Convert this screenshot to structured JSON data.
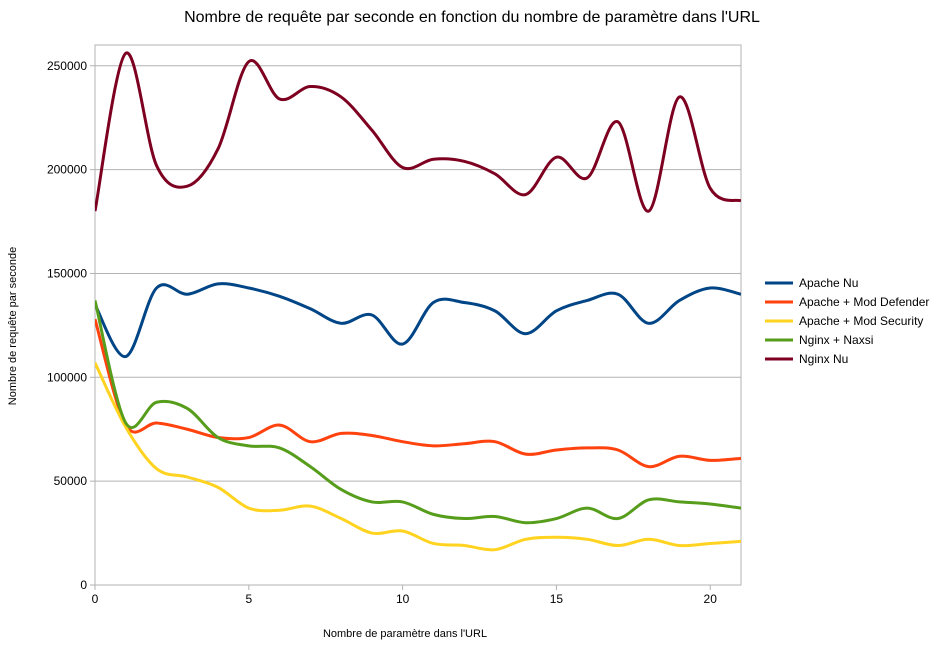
{
  "chart_data": {
    "type": "line",
    "title": "Nombre de requête par seconde en fonction du nombre de paramètre dans l'URL",
    "xlabel": "Nombre de paramètre dans l'URL",
    "ylabel": "Nombre de requête par seconde",
    "xlim": [
      0,
      21
    ],
    "ylim": [
      0,
      260000
    ],
    "xticks": [
      0,
      5,
      10,
      15,
      20
    ],
    "yticks": [
      0,
      50000,
      100000,
      150000,
      200000,
      250000
    ],
    "x_tick_labels": [
      "0",
      "5",
      "10",
      "15",
      "20"
    ],
    "y_tick_labels": [
      "0",
      "50000",
      "100000",
      "150000",
      "200000",
      "250000"
    ],
    "grid": "horizontal",
    "legend_position": "right",
    "smooth": true,
    "x": [
      0,
      1,
      2,
      3,
      4,
      5,
      6,
      7,
      8,
      9,
      10,
      11,
      12,
      13,
      14,
      15,
      16,
      17,
      18,
      19,
      20,
      21
    ],
    "series": [
      {
        "name": "Apache Nu",
        "color": "#004586",
        "values": [
          135000,
          110000,
          143000,
          140000,
          145000,
          143000,
          139000,
          133000,
          126000,
          130000,
          116000,
          136000,
          136000,
          132000,
          121000,
          132000,
          137000,
          140000,
          126000,
          137000,
          143000,
          140000
        ]
      },
      {
        "name": "Apache + Mod Defender",
        "color": "#ff420e",
        "values": [
          128000,
          77000,
          78000,
          75000,
          71000,
          71000,
          77000,
          69000,
          73000,
          72000,
          69000,
          67000,
          68000,
          69000,
          63000,
          65000,
          66000,
          65000,
          57000,
          62000,
          60000,
          61000
        ]
      },
      {
        "name": "Apache + Mod Security",
        "color": "#ffd320",
        "values": [
          107000,
          76000,
          56000,
          52000,
          47000,
          37000,
          36000,
          38000,
          32000,
          25000,
          26000,
          20000,
          19000,
          17000,
          22000,
          23000,
          22000,
          19000,
          22000,
          19000,
          20000,
          21000
        ]
      },
      {
        "name": "Nginx + Naxsi",
        "color": "#579d1c",
        "values": [
          137000,
          78000,
          88000,
          85000,
          71000,
          67000,
          66000,
          57000,
          46000,
          40000,
          40000,
          34000,
          32000,
          33000,
          30000,
          32000,
          37000,
          32000,
          41000,
          40000,
          39000,
          37000
        ]
      },
      {
        "name": "Nginx Nu",
        "color": "#7e0021",
        "values": [
          180000,
          256000,
          202000,
          192000,
          210000,
          252000,
          234000,
          240000,
          235000,
          219000,
          201000,
          205000,
          204000,
          198000,
          188000,
          206000,
          196000,
          223000,
          180000,
          235000,
          191000,
          185000
        ]
      }
    ]
  }
}
